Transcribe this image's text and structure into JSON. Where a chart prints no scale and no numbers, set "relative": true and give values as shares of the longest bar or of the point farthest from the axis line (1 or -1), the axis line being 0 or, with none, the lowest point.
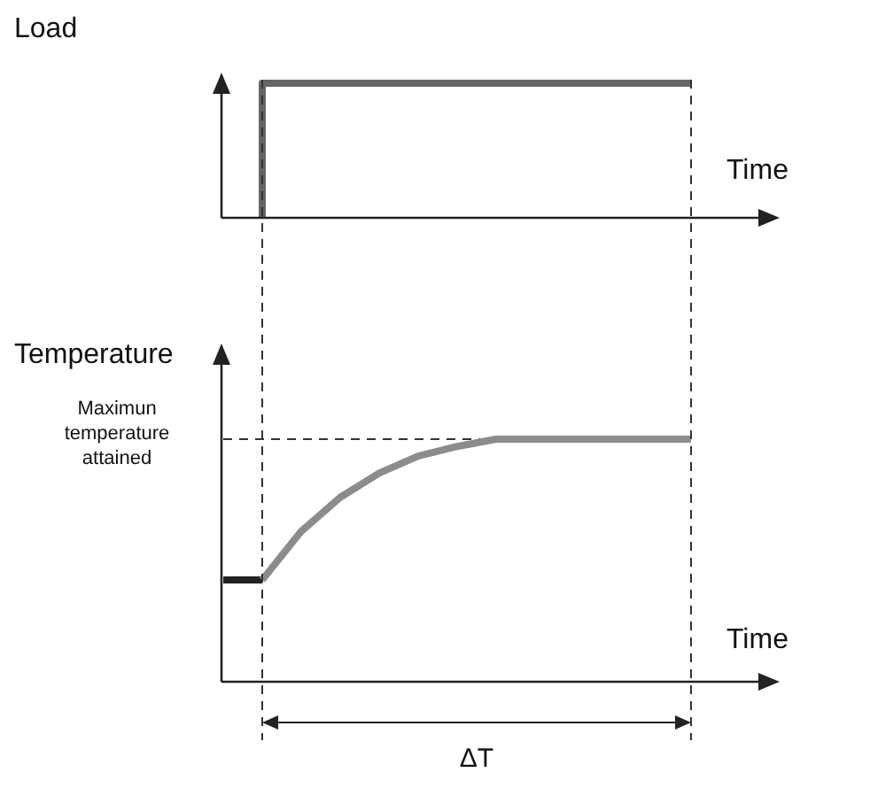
{
  "chart_data": [
    {
      "type": "step",
      "relative": true,
      "ylabel": "Load",
      "xlabel": "Time",
      "categories": [
        null,
        null,
        null,
        null,
        null,
        null,
        null,
        null,
        null,
        null,
        null,
        null,
        null
      ],
      "series": [
        {
          "color": "#666666",
          "values": [
            null,
            0,
            1,
            1,
            1,
            1,
            1,
            1,
            1,
            1,
            1,
            1,
            1
          ]
        }
      ]
    },
    {
      "type": "line",
      "relative": true,
      "ylabel": "Temperature",
      "xlabel": "Time",
      "categories": [
        null,
        null,
        null,
        null,
        null,
        null,
        null,
        null,
        null,
        null,
        null,
        null,
        null
      ],
      "series": [
        {
          "color": "#222222",
          "values": [
            0.42,
            0.42,
            null,
            null,
            null,
            null,
            null,
            null,
            null,
            null,
            null,
            null,
            null
          ]
        },
        {
          "color": "#8c8c8c",
          "values": [
            null,
            0.42,
            0.62,
            0.76,
            0.86,
            0.93,
            0.97,
            1,
            1,
            1,
            1,
            1,
            1
          ]
        }
      ],
      "ref_lines": [
        {
          "axis": "y",
          "value": 1,
          "label": "Maximun temperature attained",
          "line_style": "dashed",
          "color": "#333333"
        }
      ],
      "annotations": [
        "ΔT"
      ]
    }
  ]
}
